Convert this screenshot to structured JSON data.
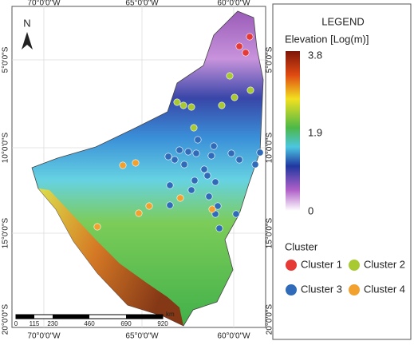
{
  "map": {
    "north": "N",
    "lon_labels": [
      "70°0'0\"W",
      "65°0'0\"W",
      "60°0'0\"W"
    ],
    "lat_labels": [
      "5°0'0\"S",
      "10°0'0\"S",
      "15°0'0\"S",
      "20°0'0\"S"
    ],
    "scale": {
      "labels": [
        "0",
        "115",
        "230",
        "460",
        "690",
        "920"
      ],
      "unit": "km"
    }
  },
  "legend": {
    "title": "LEGEND",
    "elevation_title": "Elevation [Log(m)]",
    "colorbar_ticks": [
      "3.8",
      "1.9",
      "0"
    ],
    "cluster_title": "Cluster",
    "clusters": [
      {
        "name": "Cluster 1",
        "color": "#e53a35"
      },
      {
        "name": "Cluster 2",
        "color": "#a8c932"
      },
      {
        "name": "Cluster 3",
        "color": "#2f6bb8"
      },
      {
        "name": "Cluster 4",
        "color": "#f2a12e"
      }
    ]
  }
}
